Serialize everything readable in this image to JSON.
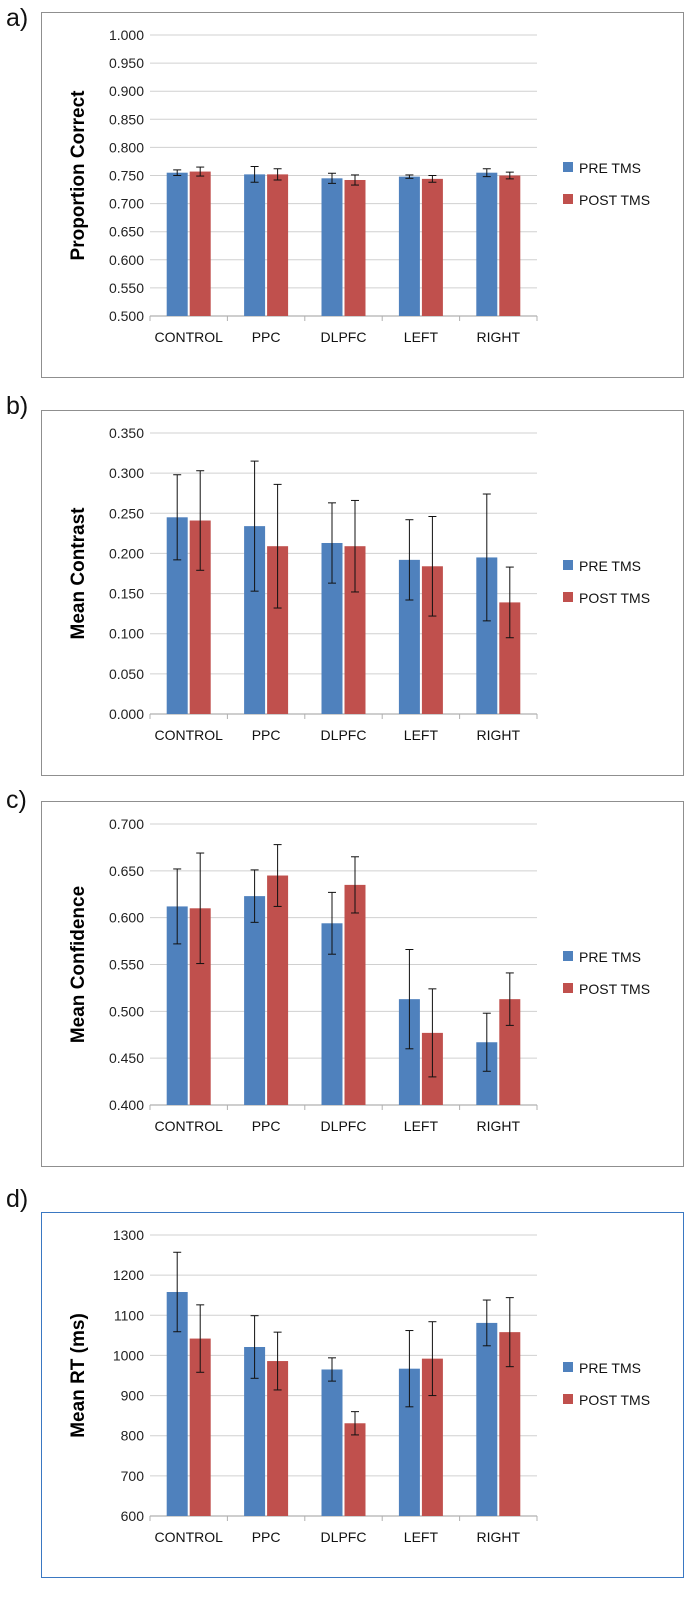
{
  "colors": {
    "pre": "#4f81bd",
    "post": "#c0504d",
    "grid": "#d0d0d0",
    "err": "#111111"
  },
  "chart_data": [
    {
      "type": "bar",
      "panel": "a)",
      "title": "",
      "xlabel": "",
      "ylabel": "Proportion Correct",
      "ylim": [
        0.5,
        1.0
      ],
      "yticks": [
        "0.500",
        "0.550",
        "0.600",
        "0.650",
        "0.700",
        "0.750",
        "0.800",
        "0.850",
        "0.900",
        "0.950",
        "1.000"
      ],
      "categories": [
        "CONTROL",
        "PPC",
        "DLPFC",
        "LEFT",
        "RIGHT"
      ],
      "series": [
        {
          "name": "PRE TMS",
          "values": [
            0.755,
            0.752,
            0.745,
            0.748,
            0.755
          ],
          "errors": [
            0.005,
            0.014,
            0.009,
            0.003,
            0.007
          ]
        },
        {
          "name": "POST TMS",
          "values": [
            0.757,
            0.752,
            0.742,
            0.744,
            0.75
          ],
          "errors": [
            0.008,
            0.01,
            0.009,
            0.006,
            0.006
          ]
        }
      ],
      "legend": "right"
    },
    {
      "type": "bar",
      "panel": "b)",
      "title": "",
      "xlabel": "",
      "ylabel": "Mean Contrast",
      "ylim": [
        0,
        0.35
      ],
      "yticks": [
        "0.000",
        "0.050",
        "0.100",
        "0.150",
        "0.200",
        "0.250",
        "0.300",
        "0.350"
      ],
      "categories": [
        "CONTROL",
        "PPC",
        "DLPFC",
        "LEFT",
        "RIGHT"
      ],
      "series": [
        {
          "name": "PRE TMS",
          "values": [
            0.245,
            0.234,
            0.213,
            0.192,
            0.195
          ],
          "errors": [
            0.053,
            0.081,
            0.05,
            0.05,
            0.079
          ]
        },
        {
          "name": "POST TMS",
          "values": [
            0.241,
            0.209,
            0.209,
            0.184,
            0.139
          ],
          "errors": [
            0.062,
            0.077,
            0.057,
            0.062,
            0.044
          ]
        }
      ],
      "legend": "right"
    },
    {
      "type": "bar",
      "panel": "c)",
      "title": "",
      "xlabel": "",
      "ylabel": "Mean Confidence",
      "ylim": [
        0.4,
        0.7
      ],
      "yticks": [
        "0.400",
        "0.450",
        "0.500",
        "0.550",
        "0.600",
        "0.650",
        "0.700"
      ],
      "categories": [
        "CONTROL",
        "PPC",
        "DLPFC",
        "LEFT",
        "RIGHT"
      ],
      "series": [
        {
          "name": "PRE TMS",
          "values": [
            0.612,
            0.623,
            0.594,
            0.513,
            0.467
          ],
          "errors": [
            0.04,
            0.028,
            0.033,
            0.053,
            0.031
          ]
        },
        {
          "name": "POST TMS",
          "values": [
            0.61,
            0.645,
            0.635,
            0.477,
            0.513
          ],
          "errors": [
            0.059,
            0.033,
            0.03,
            0.047,
            0.028
          ]
        }
      ],
      "legend": "right"
    },
    {
      "type": "bar",
      "panel": "d)",
      "title": "",
      "xlabel": "",
      "ylabel": "Mean RT (ms)",
      "ylim": [
        600,
        1300
      ],
      "yticks": [
        "600",
        "700",
        "800",
        "900",
        "1000",
        "1100",
        "1200",
        "1300"
      ],
      "categories": [
        "CONTROL",
        "PPC",
        "DLPFC",
        "LEFT",
        "RIGHT"
      ],
      "series": [
        {
          "name": "PRE TMS",
          "values": [
            1158,
            1021,
            965,
            967,
            1081
          ],
          "errors": [
            99,
            78,
            29,
            95,
            57
          ]
        },
        {
          "name": "POST TMS",
          "values": [
            1042,
            986,
            831,
            992,
            1058
          ],
          "errors": [
            84,
            72,
            29,
            92,
            86
          ]
        }
      ],
      "legend": "right"
    }
  ]
}
